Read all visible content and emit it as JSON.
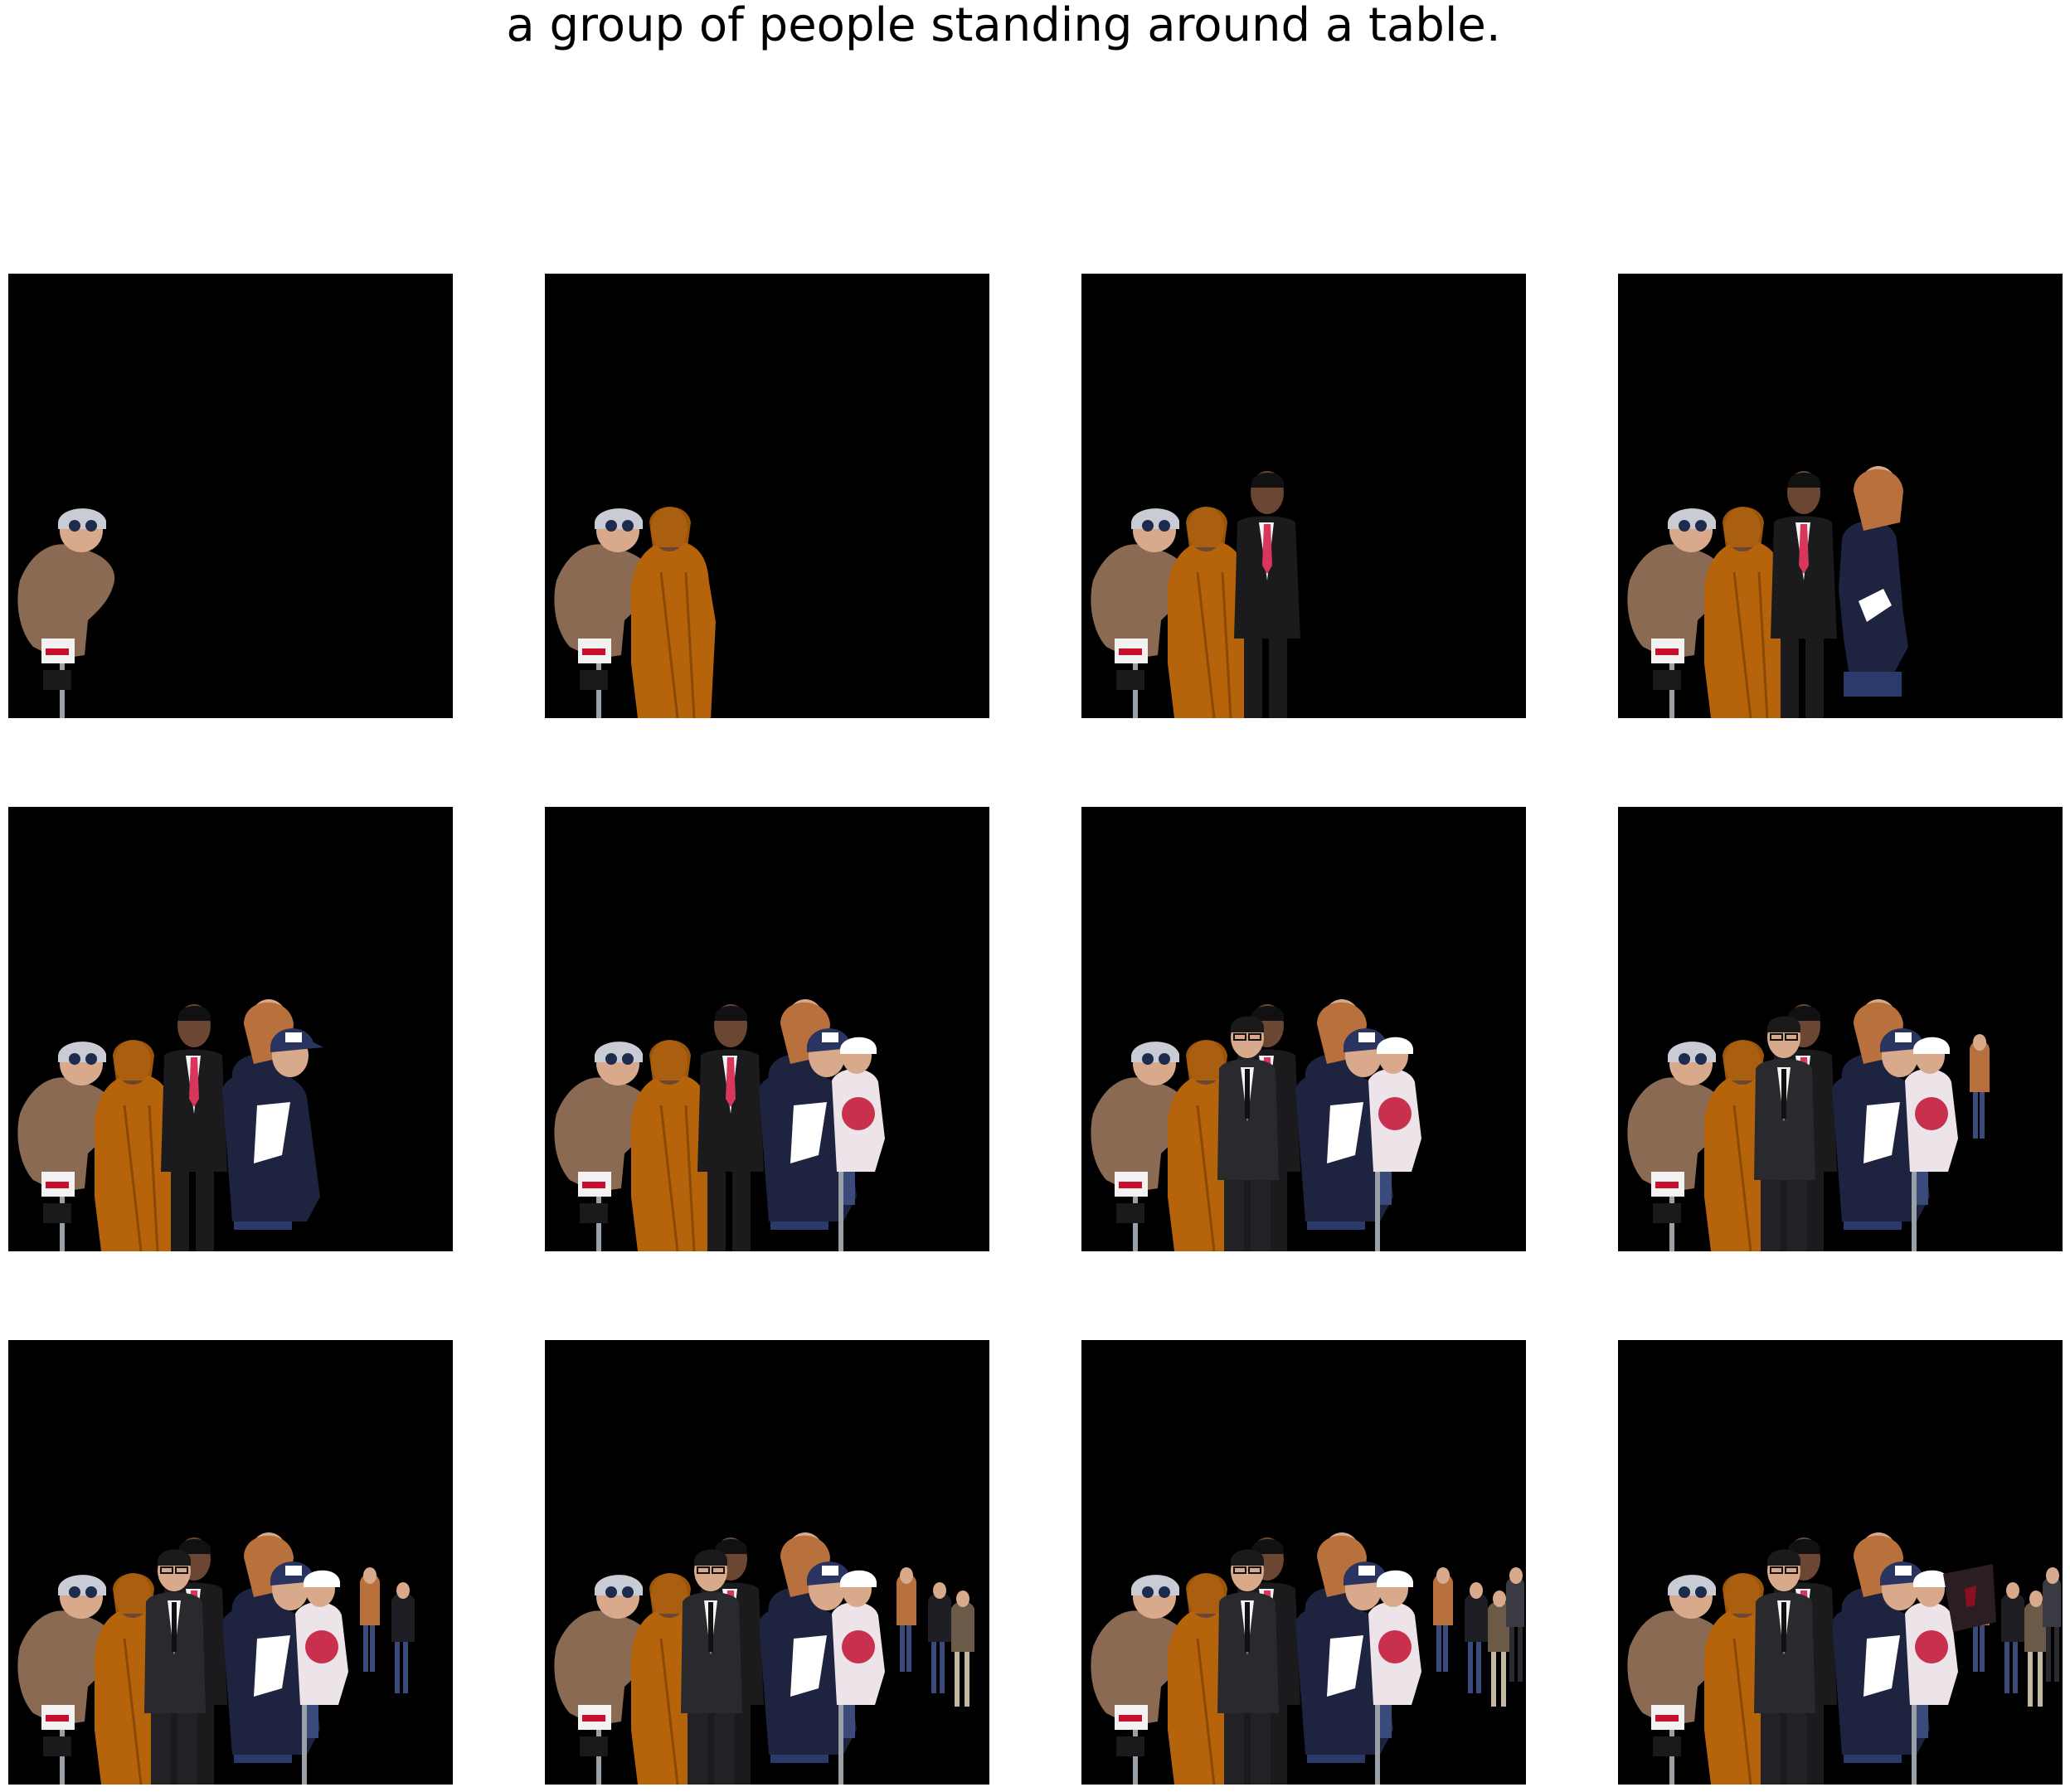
{
  "caption": "a group of people standing around a table.",
  "colors": {
    "background": "#000000",
    "page": "#ffffff",
    "coat": "#8a6a52",
    "robe": "#b5640b",
    "suit": "#1b1b1e",
    "tie": "#d8365a",
    "navy": "#1e2340",
    "tshirt": "#ece4e8",
    "skin_light": "#d9a98c",
    "skin_dark": "#6b4632",
    "hair_red": "#b8703c",
    "helmet": "#c9ccd4"
  },
  "panels": [
    {
      "step": 1,
      "figures": [
        "toddler"
      ]
    },
    {
      "step": 2,
      "figures": [
        "toddler",
        "robe-woman"
      ]
    },
    {
      "step": 3,
      "figures": [
        "toddler",
        "robe-woman",
        "suit-man"
      ]
    },
    {
      "step": 4,
      "figures": [
        "toddler",
        "robe-woman",
        "suit-man",
        "red-hair-woman"
      ]
    },
    {
      "step": 5,
      "figures": [
        "toddler",
        "robe-woman",
        "suit-man",
        "red-hair-woman",
        "cap-man"
      ]
    },
    {
      "step": 6,
      "figures": [
        "toddler",
        "robe-woman",
        "suit-man",
        "red-hair-woman",
        "cap-man",
        "child-white-shirt"
      ]
    },
    {
      "step": 7,
      "figures": [
        "toddler",
        "robe-woman",
        "suit-man",
        "red-hair-woman",
        "cap-man",
        "child-white-shirt",
        "glasses-man"
      ]
    },
    {
      "step": 8,
      "figures": [
        "toddler",
        "robe-woman",
        "suit-man",
        "red-hair-woman",
        "cap-man",
        "child-white-shirt",
        "glasses-man",
        "small-person-1"
      ]
    },
    {
      "step": 9,
      "figures": [
        "toddler",
        "robe-woman",
        "suit-man",
        "red-hair-woman",
        "cap-man",
        "child-white-shirt",
        "glasses-man",
        "small-person-1",
        "small-person-2"
      ]
    },
    {
      "step": 10,
      "figures": [
        "toddler",
        "robe-woman",
        "suit-man",
        "red-hair-woman",
        "cap-man",
        "child-white-shirt",
        "glasses-man",
        "small-person-1",
        "small-person-2",
        "small-person-3"
      ]
    },
    {
      "step": 11,
      "figures": [
        "toddler",
        "robe-woman",
        "suit-man",
        "red-hair-woman",
        "cap-man",
        "child-white-shirt",
        "glasses-man",
        "small-person-1",
        "small-person-2",
        "small-person-3",
        "small-person-4"
      ]
    },
    {
      "step": 12,
      "figures": [
        "toddler",
        "robe-woman",
        "suit-man",
        "red-hair-woman",
        "cap-man",
        "child-white-shirt",
        "glasses-man",
        "small-person-1",
        "small-person-2",
        "small-person-3",
        "small-person-4",
        "dark-flag"
      ]
    }
  ]
}
